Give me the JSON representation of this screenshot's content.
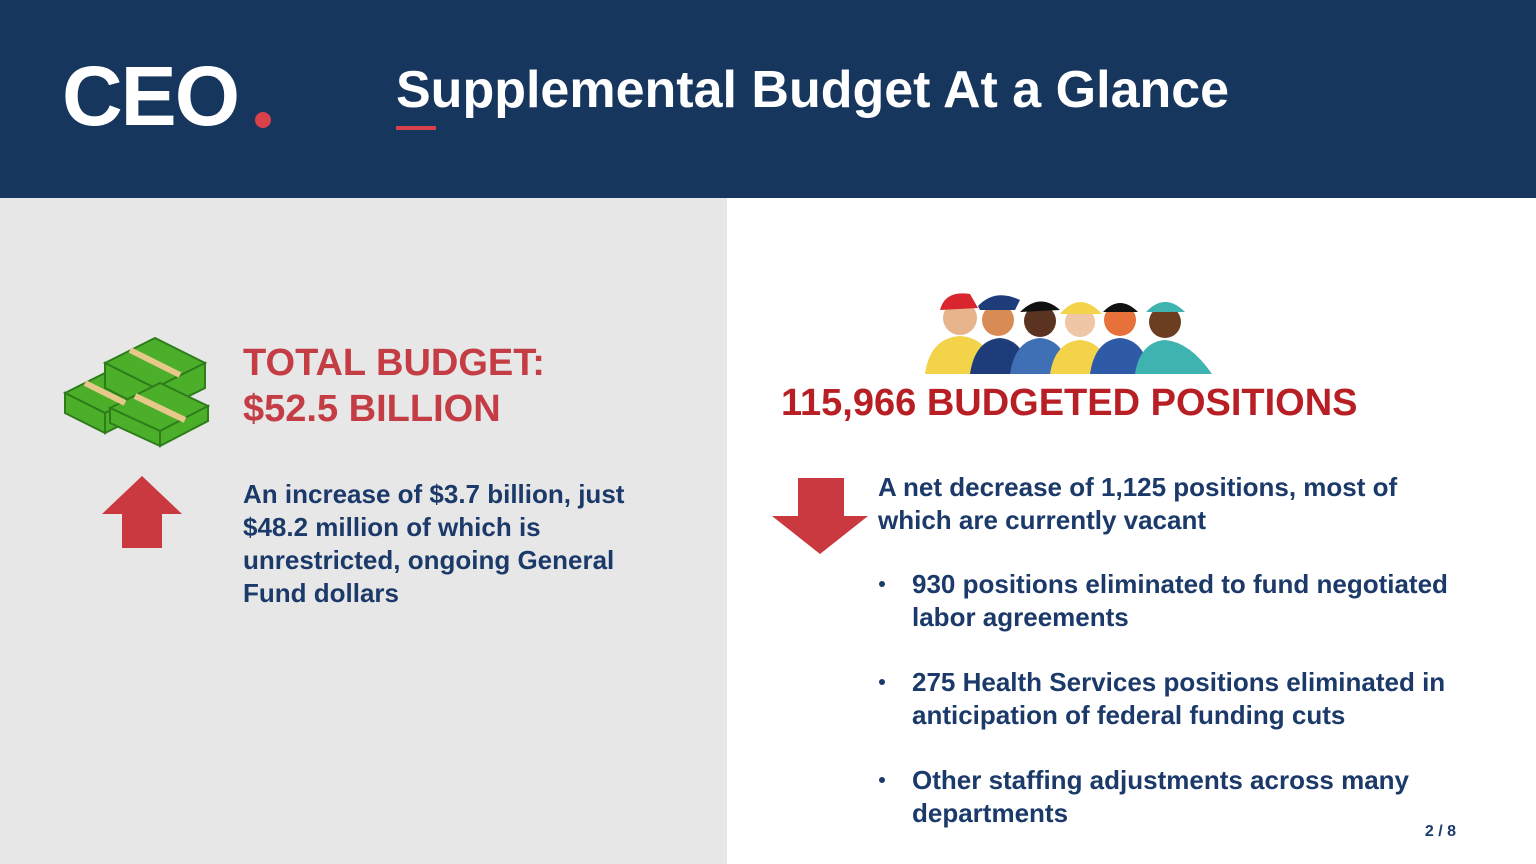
{
  "header": {
    "logo": "CEO",
    "title": "Supplemental Budget At a Glance"
  },
  "left": {
    "heading": [
      "TOTAL BUDGET:",
      "$52.5 BILLION"
    ],
    "description": "An increase of $3.7 billion, just $48.2 million of which is unrestricted, ongoing General Fund dollars"
  },
  "right": {
    "heading": "115,966 BUDGETED POSITIONS",
    "description": "A net decrease of 1,125 positions, most of which are currently vacant",
    "bullets": [
      "930 positions eliminated to fund negotiated labor agreements",
      "275 Health Services positions eliminated in anticipation of federal funding cuts",
      "Other staffing adjustments across many departments"
    ]
  },
  "page_number": "2 / 8"
}
